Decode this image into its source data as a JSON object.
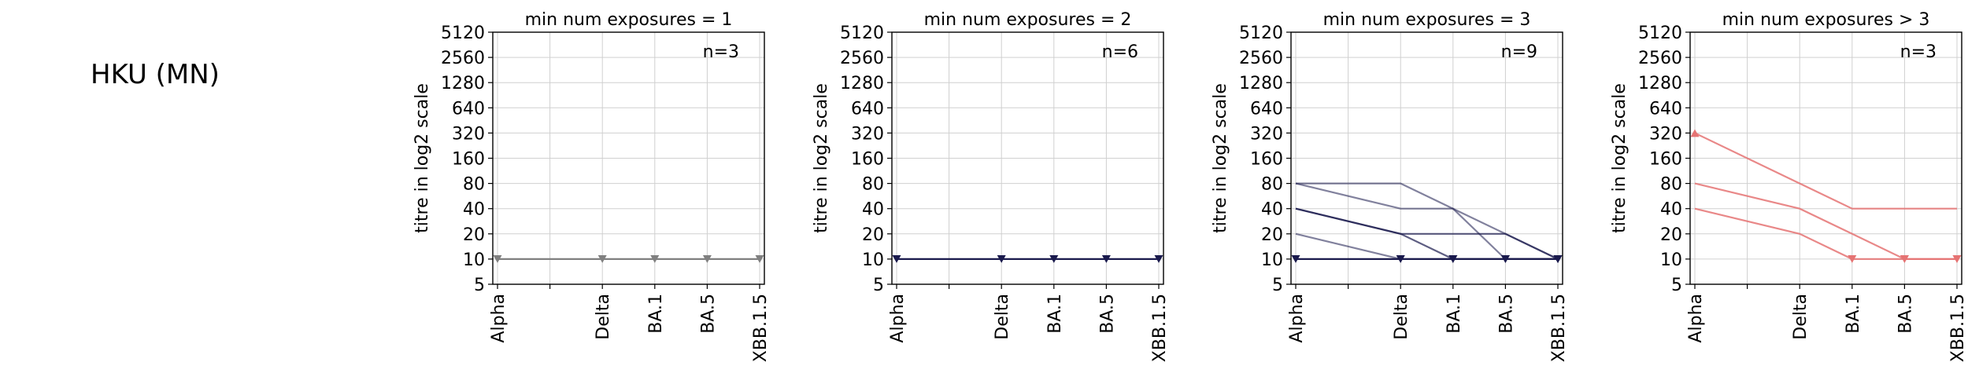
{
  "row_title": "HKU (MN)",
  "y_axis_label": "titre in log2 scale",
  "chart_data": [
    {
      "type": "line",
      "title": "min num exposures = 1",
      "n_label": "n=3",
      "ylabel": "titre in log2 scale",
      "y_scale": "log2",
      "ylim": [
        5,
        5120
      ],
      "y_ticks": [
        5,
        10,
        20,
        40,
        80,
        160,
        320,
        640,
        1280,
        2560,
        5120
      ],
      "x_ticks": [
        "Alpha",
        "",
        "Delta",
        "BA.1",
        "BA.5",
        "XBB.1.5"
      ],
      "grid": true,
      "color": "#808080",
      "series": [
        {
          "values": [
            10,
            10,
            10,
            10,
            10
          ],
          "opacity": 1.0,
          "markers": [
            "down",
            "down",
            "down",
            "down",
            "down"
          ]
        }
      ]
    },
    {
      "type": "line",
      "title": "min num exposures = 2",
      "n_label": "n=6",
      "ylabel": "titre in log2 scale",
      "y_scale": "log2",
      "ylim": [
        5,
        5120
      ],
      "y_ticks": [
        5,
        10,
        20,
        40,
        80,
        160,
        320,
        640,
        1280,
        2560,
        5120
      ],
      "x_ticks": [
        "Alpha",
        "",
        "Delta",
        "BA.1",
        "BA.5",
        "XBB.1.5"
      ],
      "grid": true,
      "color": "#1a1a4d",
      "series": [
        {
          "values": [
            10,
            10,
            10,
            10,
            10
          ],
          "opacity": 1.0,
          "markers": [
            "down",
            "down",
            "down",
            "down",
            "down"
          ]
        }
      ]
    },
    {
      "type": "line",
      "title": "min num exposures = 3",
      "n_label": "n=9",
      "ylabel": "titre in log2 scale",
      "y_scale": "log2",
      "ylim": [
        5,
        5120
      ],
      "y_ticks": [
        5,
        10,
        20,
        40,
        80,
        160,
        320,
        640,
        1280,
        2560,
        5120
      ],
      "x_ticks": [
        "Alpha",
        "",
        "Delta",
        "BA.1",
        "BA.5",
        "XBB.1.5"
      ],
      "grid": true,
      "color": "#1a1a4d",
      "series": [
        {
          "values": [
            80,
            80,
            40,
            20,
            10
          ],
          "opacity": 0.55,
          "markers": [
            "none",
            "none",
            "none",
            "none",
            "down"
          ]
        },
        {
          "values": [
            80,
            40,
            40,
            10,
            10
          ],
          "opacity": 0.55,
          "markers": [
            "none",
            "none",
            "none",
            "none",
            "down"
          ]
        },
        {
          "values": [
            40,
            20,
            20,
            20,
            10
          ],
          "opacity": 0.7,
          "markers": [
            "none",
            "none",
            "none",
            "none",
            "down"
          ]
        },
        {
          "values": [
            40,
            20,
            10,
            10,
            10
          ],
          "opacity": 0.7,
          "markers": [
            "none",
            "none",
            "down",
            "down",
            "down"
          ]
        },
        {
          "values": [
            20,
            10,
            10,
            10,
            10
          ],
          "opacity": 0.55,
          "markers": [
            "none",
            "down",
            "down",
            "down",
            "down"
          ]
        },
        {
          "values": [
            10,
            10,
            10,
            10,
            10
          ],
          "opacity": 1.0,
          "markers": [
            "down",
            "down",
            "down",
            "down",
            "down"
          ]
        }
      ]
    },
    {
      "type": "line",
      "title": "min num exposures > 3",
      "n_label": "n=3",
      "ylabel": "titre in log2 scale",
      "y_scale": "log2",
      "ylim": [
        5,
        5120
      ],
      "y_ticks": [
        5,
        10,
        20,
        40,
        80,
        160,
        320,
        640,
        1280,
        2560,
        5120
      ],
      "x_ticks": [
        "Alpha",
        "",
        "Delta",
        "BA.1",
        "BA.5",
        "XBB.1.5"
      ],
      "grid": true,
      "color": "#e57373",
      "series": [
        {
          "values": [
            320,
            80,
            40,
            40,
            40
          ],
          "opacity": 0.85,
          "markers": [
            "up",
            "none",
            "none",
            "none",
            "none"
          ]
        },
        {
          "values": [
            80,
            40,
            20,
            10,
            10
          ],
          "opacity": 0.85,
          "markers": [
            "none",
            "none",
            "none",
            "down",
            "down"
          ]
        },
        {
          "values": [
            40,
            20,
            10,
            10,
            10
          ],
          "opacity": 0.85,
          "markers": [
            "none",
            "none",
            "down",
            "down",
            "down"
          ]
        }
      ]
    }
  ]
}
